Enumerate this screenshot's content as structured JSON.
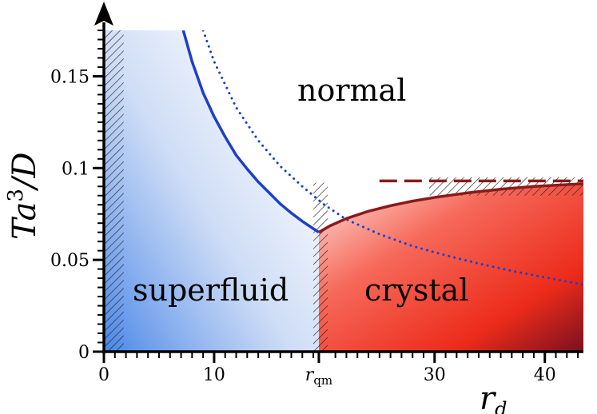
{
  "chart_data": {
    "type": "line",
    "title": "",
    "xlabel": "r_d",
    "ylabel": "Ta³/D",
    "xlim": [
      0,
      43.5
    ],
    "ylim": [
      0,
      0.175
    ],
    "x_ticks": [
      {
        "value": 0,
        "label": "0"
      },
      {
        "value": 10,
        "label": "10"
      },
      {
        "value": 19.5,
        "label": "r_qm",
        "label_main": "r",
        "label_sub": "qm"
      },
      {
        "value": 30,
        "label": "30"
      },
      {
        "value": 40,
        "label": "40"
      }
    ],
    "y_ticks": [
      {
        "value": 0,
        "label": "0"
      },
      {
        "value": 0.05,
        "label": "0.05"
      },
      {
        "value": 0.1,
        "label": "0.1"
      },
      {
        "value": 0.15,
        "label": "0.15"
      }
    ],
    "axis_label_text": {
      "x_main": "r",
      "x_sub": "d",
      "y_prefix": "Ta",
      "y_sup": "3",
      "y_suffix": "/D"
    },
    "regions": {
      "normal": "normal",
      "superfluid": "superfluid",
      "crystal": "crystal"
    },
    "series": [
      {
        "style": "solid-blue",
        "color": "#1f3fc8",
        "x": [
          7.2,
          8,
          9,
          10,
          11,
          12,
          13,
          14,
          15,
          16,
          17,
          18,
          19.5
        ],
        "y": [
          0.175,
          0.158,
          0.141,
          0.128,
          0.117,
          0.107,
          0.0995,
          0.0925,
          0.0865,
          0.0805,
          0.0755,
          0.071,
          0.065
        ]
      },
      {
        "style": "dotted-blue",
        "color": "#1f3fc8",
        "x": [
          9,
          10,
          12,
          14,
          16,
          18,
          20,
          22,
          25,
          28,
          31,
          34,
          37,
          40,
          43.5
        ],
        "y": [
          0.175,
          0.158,
          0.133,
          0.115,
          0.101,
          0.09,
          0.08,
          0.072,
          0.064,
          0.0575,
          0.0525,
          0.048,
          0.044,
          0.0405,
          0.0365
        ]
      },
      {
        "style": "solid-darkred",
        "color": "#8b1a1a",
        "x": [
          19.5,
          20.5,
          22,
          24,
          26,
          28,
          30,
          33,
          36,
          39,
          43.5
        ],
        "y": [
          0.065,
          0.0685,
          0.0725,
          0.0765,
          0.0795,
          0.082,
          0.084,
          0.0865,
          0.0885,
          0.09,
          0.0915
        ]
      },
      {
        "style": "dashed-darkred",
        "color": "#8b1a1a",
        "x": [
          25,
          43.5
        ],
        "y": [
          0.093,
          0.093
        ]
      }
    ],
    "hatched_bands": [
      {
        "x": [
          0,
          1.8
        ],
        "y": [
          0,
          0.175
        ]
      },
      {
        "x": [
          19.0,
          20.3
        ],
        "y": [
          0,
          0.092
        ]
      },
      {
        "x": [
          29.5,
          43.5
        ],
        "y": [
          0.085,
          0.095
        ]
      }
    ],
    "colors": {
      "superfluid_fill": "#4a86e8",
      "crystal_fill": "#f0301e",
      "crystal_dark": "#7a1020",
      "axis": "#000000"
    },
    "grid": false,
    "legend": "none"
  }
}
